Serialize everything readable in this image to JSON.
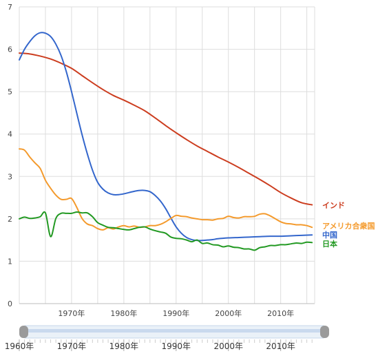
{
  "chart_data": {
    "type": "line",
    "ylim": [
      0,
      7
    ],
    "yticks": [
      "0",
      "1",
      "2",
      "3",
      "4",
      "5",
      "6",
      "7"
    ],
    "xrange": [
      1960,
      2016.5
    ],
    "xticks": [
      {
        "year": 1970,
        "label": "1970年"
      },
      {
        "year": 1980,
        "label": "1980年"
      },
      {
        "year": 1990,
        "label": "1990年"
      },
      {
        "year": 2000,
        "label": "2000年"
      },
      {
        "year": 2010,
        "label": "2010年"
      }
    ],
    "grid": true,
    "series": [
      {
        "name": "インド",
        "color": "#cc3d1f",
        "x": [
          1960,
          1962,
          1964,
          1966,
          1968,
          1970,
          1972,
          1974,
          1976,
          1978,
          1980,
          1982,
          1984,
          1986,
          1988,
          1990,
          1992,
          1994,
          1996,
          1998,
          2000,
          2002,
          2004,
          2006,
          2008,
          2010,
          2012,
          2014,
          2016
        ],
        "y": [
          5.91,
          5.89,
          5.84,
          5.77,
          5.67,
          5.55,
          5.38,
          5.21,
          5.05,
          4.91,
          4.8,
          4.68,
          4.55,
          4.38,
          4.2,
          4.03,
          3.87,
          3.72,
          3.59,
          3.46,
          3.34,
          3.21,
          3.07,
          2.93,
          2.78,
          2.62,
          2.49,
          2.38,
          2.33
        ]
      },
      {
        "name": "中国",
        "color": "#3366cc",
        "x": [
          1960,
          1961,
          1962,
          1963,
          1964,
          1965,
          1966,
          1967,
          1968,
          1969,
          1970,
          1971,
          1972,
          1973,
          1974,
          1975,
          1976,
          1977,
          1978,
          1979,
          1980,
          1981,
          1982,
          1983,
          1984,
          1985,
          1986,
          1987,
          1988,
          1989,
          1990,
          1991,
          1992,
          1993,
          1994,
          1995,
          1996,
          1997,
          1998,
          2000,
          2002,
          2004,
          2006,
          2008,
          2010,
          2012,
          2014,
          2016
        ],
        "y": [
          5.75,
          6.0,
          6.18,
          6.32,
          6.39,
          6.38,
          6.3,
          6.12,
          5.85,
          5.47,
          5.0,
          4.49,
          3.99,
          3.54,
          3.15,
          2.86,
          2.7,
          2.61,
          2.57,
          2.57,
          2.59,
          2.62,
          2.65,
          2.67,
          2.67,
          2.64,
          2.55,
          2.42,
          2.24,
          2.02,
          1.81,
          1.66,
          1.56,
          1.51,
          1.49,
          1.49,
          1.5,
          1.51,
          1.53,
          1.55,
          1.56,
          1.57,
          1.58,
          1.59,
          1.59,
          1.6,
          1.61,
          1.62
        ]
      },
      {
        "name": "アメリカ合衆国",
        "color": "#f49a2c",
        "x": [
          1960,
          1961,
          1962,
          1963,
          1964,
          1965,
          1966,
          1967,
          1968,
          1969,
          1970,
          1971,
          1972,
          1973,
          1974,
          1975,
          1976,
          1977,
          1978,
          1979,
          1980,
          1981,
          1982,
          1983,
          1984,
          1985,
          1986,
          1987,
          1988,
          1989,
          1990,
          1991,
          1992,
          1993,
          1994,
          1995,
          1996,
          1997,
          1998,
          1999,
          2000,
          2001,
          2002,
          2003,
          2004,
          2005,
          2006,
          2007,
          2008,
          2009,
          2010,
          2011,
          2012,
          2013,
          2014,
          2015,
          2016
        ],
        "y": [
          3.65,
          3.62,
          3.46,
          3.32,
          3.19,
          2.91,
          2.72,
          2.56,
          2.46,
          2.46,
          2.48,
          2.27,
          2.01,
          1.88,
          1.84,
          1.77,
          1.74,
          1.79,
          1.76,
          1.81,
          1.84,
          1.81,
          1.83,
          1.8,
          1.81,
          1.84,
          1.84,
          1.87,
          1.93,
          2.01,
          2.08,
          2.06,
          2.05,
          2.02,
          2.0,
          1.98,
          1.98,
          1.97,
          2.0,
          2.01,
          2.06,
          2.03,
          2.02,
          2.05,
          2.05,
          2.06,
          2.11,
          2.12,
          2.07,
          2.0,
          1.93,
          1.89,
          1.88,
          1.86,
          1.86,
          1.84,
          1.8
        ]
      },
      {
        "name": "日本",
        "color": "#229922",
        "x": [
          1960,
          1961,
          1962,
          1963,
          1964,
          1965,
          1966,
          1967,
          1968,
          1969,
          1970,
          1971,
          1972,
          1973,
          1974,
          1975,
          1976,
          1977,
          1978,
          1979,
          1980,
          1981,
          1982,
          1983,
          1984,
          1985,
          1986,
          1987,
          1988,
          1989,
          1990,
          1991,
          1992,
          1993,
          1994,
          1995,
          1996,
          1997,
          1998,
          1999,
          2000,
          2001,
          2002,
          2003,
          2004,
          2005,
          2006,
          2007,
          2008,
          2009,
          2010,
          2011,
          2012,
          2013,
          2014,
          2015,
          2016
        ],
        "y": [
          2.0,
          2.04,
          2.01,
          2.02,
          2.05,
          2.14,
          1.58,
          2.01,
          2.13,
          2.13,
          2.13,
          2.16,
          2.14,
          2.14,
          2.05,
          1.91,
          1.85,
          1.8,
          1.79,
          1.77,
          1.75,
          1.74,
          1.77,
          1.8,
          1.81,
          1.76,
          1.72,
          1.69,
          1.66,
          1.57,
          1.54,
          1.53,
          1.5,
          1.46,
          1.5,
          1.42,
          1.43,
          1.39,
          1.38,
          1.34,
          1.36,
          1.33,
          1.32,
          1.29,
          1.29,
          1.26,
          1.32,
          1.34,
          1.37,
          1.37,
          1.39,
          1.39,
          1.41,
          1.43,
          1.42,
          1.45,
          1.44
        ]
      }
    ]
  },
  "range_selector": {
    "ticks": [
      {
        "year": 1960,
        "label": "1960年"
      },
      {
        "year": 1970,
        "label": "1970年"
      },
      {
        "year": 1980,
        "label": "1980年"
      },
      {
        "year": 1990,
        "label": "1990年"
      },
      {
        "year": 2000,
        "label": "2000年"
      },
      {
        "year": 2010,
        "label": "2010年"
      }
    ]
  }
}
